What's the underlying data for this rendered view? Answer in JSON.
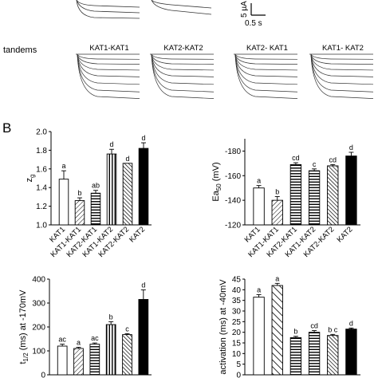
{
  "panel_label": "B",
  "scale_bar": {
    "current": "5 µA",
    "time": "0.5 s"
  },
  "tandems": {
    "row_label": "tandems",
    "names": [
      "KAT1-KAT1",
      "KAT2-KAT2",
      "KAT2- KAT1",
      "KAT1- KAT2"
    ]
  },
  "chart_data": [
    {
      "type": "bar",
      "categories": [
        "KAT1",
        "KAT1-KAT1",
        "KAT2-KAT1",
        "KAT1-KAT2",
        "KAT2-KAT2",
        "KAT2"
      ],
      "values": [
        1.49,
        1.26,
        1.34,
        1.76,
        1.66,
        1.82
      ],
      "errors": [
        0.09,
        0.03,
        0.03,
        0.05,
        0.0,
        0.06
      ],
      "significance": [
        "a",
        "b",
        "ab",
        "d",
        "d",
        "d"
      ],
      "ylabel": "z",
      "ylabel_sub": "g",
      "ylim": [
        1.0,
        2.0
      ],
      "yticks": [
        "1.0",
        "1.2",
        "1.4",
        "1.6",
        "1.8",
        "2.0"
      ],
      "ytick_values": [
        1.0,
        1.2,
        1.4,
        1.6,
        1.8,
        2.0
      ],
      "patterns": [
        "white",
        "diag-light",
        "horiz",
        "vert",
        "diag-dense",
        "black"
      ]
    },
    {
      "type": "bar",
      "categories": [
        "KAT1",
        "KAT1-KAT1",
        "KAT2-KAT1",
        "KAT1-KAT2",
        "KAT2-KAT2",
        "KAT2"
      ],
      "values": [
        -150,
        -140,
        -169,
        -164,
        -168,
        -176
      ],
      "errors": [
        2,
        3,
        1.5,
        1.5,
        1,
        3
      ],
      "significance": [
        "a",
        "b",
        "cd",
        "c",
        "cd",
        "d"
      ],
      "ylabel": "Ea",
      "ylabel_sub": "50",
      "ylabel_unit": " (mV)",
      "ylim": [
        -120,
        -190
      ],
      "yticks": [
        "-180",
        "-160",
        "-140",
        "-120"
      ],
      "ytick_values": [
        -180,
        -160,
        -140,
        -120
      ],
      "patterns": [
        "white",
        "diag-light",
        "horiz",
        "horiz",
        "diag-dense",
        "black"
      ]
    },
    {
      "type": "bar",
      "categories": [
        "KAT1",
        "KAT1-KAT1",
        "KAT2-KAT1",
        "KAT1-KAT2",
        "KAT2-KAT2",
        "KAT2"
      ],
      "values": [
        120,
        110,
        128,
        210,
        168,
        315
      ],
      "errors": [
        8,
        5,
        5,
        12,
        4,
        40
      ],
      "significance": [
        "ac",
        "a",
        "ac",
        "b",
        "c",
        "d"
      ],
      "ylabel": "t",
      "ylabel_sub": "1/2",
      "ylabel_unit": " (ms) at -170mV",
      "ylim": [
        0,
        400
      ],
      "yticks": [
        "0",
        "100",
        "200",
        "300",
        "400"
      ],
      "ytick_values": [
        0,
        100,
        200,
        300,
        400
      ],
      "patterns": [
        "white",
        "diag-light",
        "horiz",
        "vert",
        "diag-dense",
        "black"
      ]
    },
    {
      "type": "bar",
      "categories": [
        "KAT1",
        "KAT1-KAT1",
        "KAT2-KAT1",
        "KAT1-KAT2",
        "KAT2-KAT2",
        "KAT2"
      ],
      "values": [
        36.5,
        42,
        17.5,
        20,
        18.5,
        21.5
      ],
      "errors": [
        1.2,
        1.0,
        0.6,
        0.8,
        0.5,
        0.5
      ],
      "significance": [
        "a",
        "a",
        "b",
        "cd",
        "b c",
        "d"
      ],
      "ylabel": "activation (ms) at -40mV",
      "ylim": [
        0,
        45
      ],
      "yticks": [
        "0",
        "5",
        "10",
        "15",
        "20",
        "25",
        "30",
        "35",
        "40",
        "45"
      ],
      "ytick_values": [
        0,
        5,
        10,
        15,
        20,
        25,
        30,
        35,
        40,
        45
      ],
      "patterns": [
        "white",
        "diag-sparse",
        "horiz",
        "horiz",
        "diag-dense",
        "black"
      ]
    }
  ]
}
